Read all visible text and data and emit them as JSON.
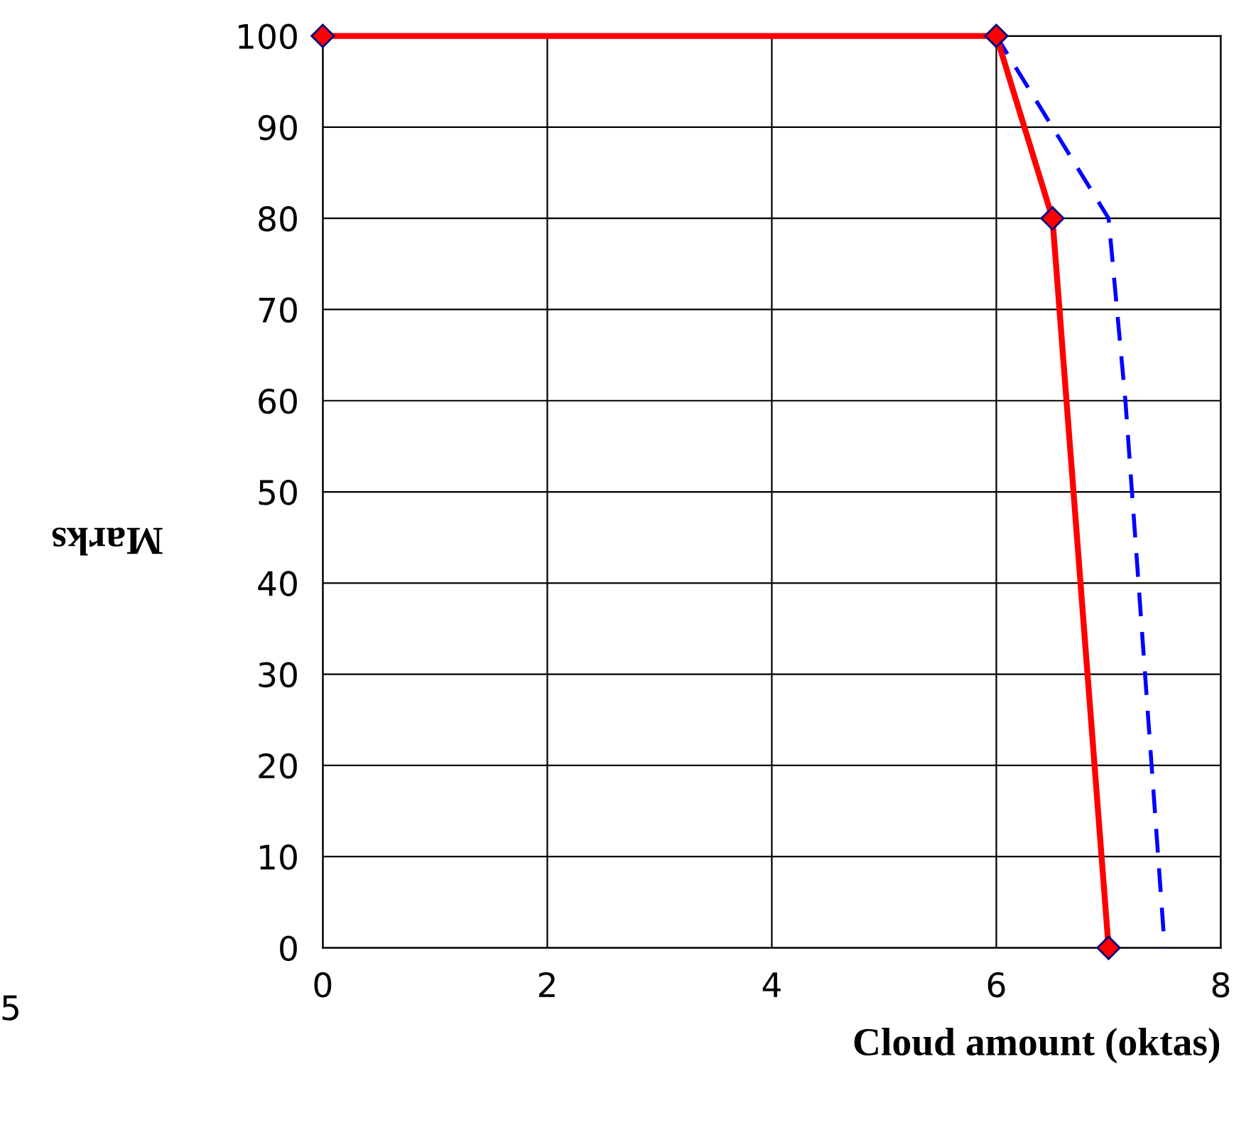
{
  "chart_data": {
    "type": "line",
    "xlabel": "Cloud amount (oktas)",
    "ylabel": "Marks",
    "annotations": [
      "5"
    ],
    "series": [
      {
        "color": "#0000ff",
        "x": [
          0,
          6,
          7,
          7.15,
          7.5
        ],
        "values": [
          100,
          100,
          80,
          60,
          0
        ],
        "line_style": "dashed",
        "marker": "none"
      },
      {
        "color": "#ff0000",
        "x": [
          0,
          6,
          6.5,
          7
        ],
        "values": [
          100,
          100,
          80,
          0
        ],
        "line_style": "solid",
        "marker": "diamond"
      }
    ],
    "xlim": [
      0,
      8
    ],
    "xticks": [
      0,
      2,
      4,
      6,
      8
    ],
    "ylim": [
      0,
      100
    ],
    "yticks": [
      0,
      10,
      20,
      30,
      40,
      50,
      60,
      70,
      80,
      90,
      100
    ],
    "grid": true,
    "legend": false
  }
}
